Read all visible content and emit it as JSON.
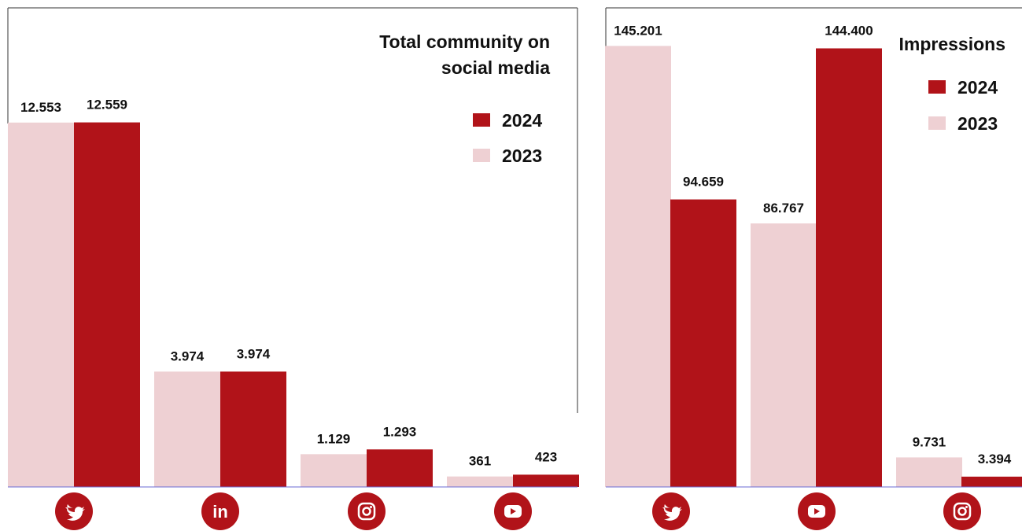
{
  "colors": {
    "y2024": "#b11319",
    "y2023": "#eed0d3",
    "baseline": "#6b6bd6",
    "frame": "#333333"
  },
  "chart_data": [
    {
      "type": "bar",
      "title": "Total community on social media",
      "title_lines": [
        "Total community on",
        "social media"
      ],
      "categories": [
        "Twitter",
        "LinkedIn",
        "Instagram",
        "YouTube"
      ],
      "category_icons": [
        "twitter-icon",
        "linkedin-icon",
        "instagram-icon",
        "youtube-icon"
      ],
      "series": [
        {
          "name": "2023",
          "values": [
            12553,
            3974,
            1129,
            361
          ],
          "labels": [
            "12.553",
            "3.974",
            "1.129",
            "361"
          ]
        },
        {
          "name": "2024",
          "values": [
            12559,
            3974,
            1293,
            423
          ],
          "labels": [
            "12.559",
            "3.974",
            "1.293",
            "423"
          ]
        }
      ],
      "legend": [
        "2024",
        "2023"
      ],
      "legend_position": "top-right",
      "ylim": [
        0,
        15800
      ],
      "grid": false
    },
    {
      "type": "bar",
      "title": "Impressions",
      "title_lines": [
        "Impressions"
      ],
      "categories": [
        "Twitter",
        "YouTube",
        "Instagram"
      ],
      "category_icons": [
        "twitter-icon",
        "youtube-icon",
        "instagram-icon"
      ],
      "series": [
        {
          "name": "2023",
          "values": [
            145201,
            86767,
            9731
          ],
          "labels": [
            "145.201",
            "86.767",
            "9.731"
          ]
        },
        {
          "name": "2024",
          "values": [
            94659,
            144400,
            3394
          ],
          "labels": [
            "94.659",
            "144.400",
            "3.394"
          ]
        }
      ],
      "legend": [
        "2024",
        "2023"
      ],
      "legend_position": "top-right",
      "ylim": [
        0,
        151000
      ],
      "grid": false
    }
  ]
}
